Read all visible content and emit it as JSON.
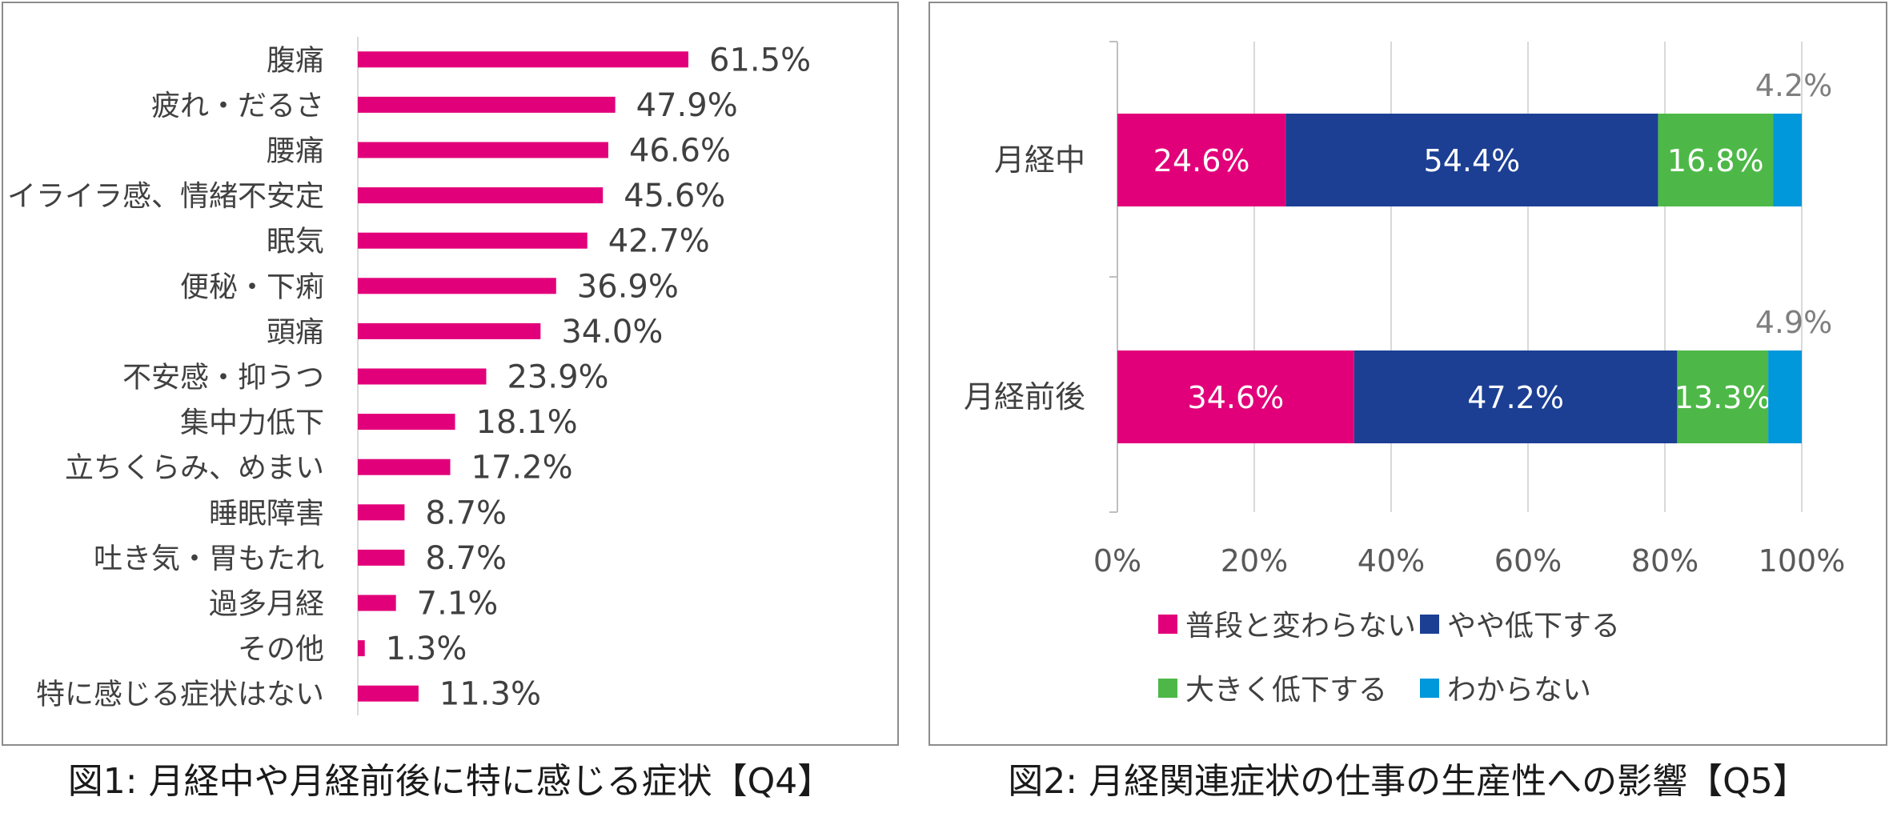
{
  "colors": {
    "magenta": "#E2007A",
    "navy": "#1C3F94",
    "green": "#4DB848",
    "cyan": "#0097DB",
    "text": "#404040",
    "grid": "#D9D9D9",
    "muted": "#7F7F7F"
  },
  "chart_data": [
    {
      "type": "bar",
      "orientation": "horizontal",
      "categories": [
        "腹痛",
        "疲れ・だるさ",
        "腰痛",
        "イライラ感、情緒不安定",
        "眠気",
        "便秘・下痢",
        "頭痛",
        "不安感・抑うつ",
        "集中力低下",
        "立ちくらみ、めまい",
        "睡眠障害",
        "吐き気・胃もたれ",
        "過多月経",
        "その他",
        "特に感じる症状はない"
      ],
      "values": [
        61.5,
        47.9,
        46.6,
        45.6,
        42.7,
        36.9,
        34.0,
        23.9,
        18.1,
        17.2,
        8.7,
        8.7,
        7.1,
        1.3,
        11.3
      ],
      "value_labels": [
        "61.5%",
        "47.9%",
        "46.6%",
        "45.6%",
        "42.7%",
        "36.9%",
        "34.0%",
        "23.9%",
        "18.1%",
        "17.2%",
        "8.7%",
        "8.7%",
        "7.1%",
        "1.3%",
        "11.3%"
      ],
      "unit": "%",
      "color": "#E2007A",
      "caption": "図1: 月経中や月経前後に特に感じる症状【Q4】"
    },
    {
      "type": "bar",
      "orientation": "horizontal",
      "stacked": true,
      "categories": [
        "月経中",
        "月経前後"
      ],
      "series": [
        {
          "name": "普段と変わらない",
          "color": "#E2007A",
          "values": [
            24.6,
            34.6
          ],
          "labels": [
            "24.6%",
            "34.6%"
          ]
        },
        {
          "name": "やや低下する",
          "color": "#1C3F94",
          "values": [
            54.4,
            47.2
          ],
          "labels": [
            "54.4%",
            "47.2%"
          ]
        },
        {
          "name": "大きく低下する",
          "color": "#4DB848",
          "values": [
            16.8,
            13.3
          ],
          "labels": [
            "16.8%",
            "13.3%"
          ]
        },
        {
          "name": "わからない",
          "color": "#0097DB",
          "values": [
            4.2,
            4.9
          ],
          "labels": [
            "4.2%",
            "4.9%"
          ]
        }
      ],
      "xlim": [
        0,
        100
      ],
      "x_ticks": [
        "0%",
        "20%",
        "40%",
        "60%",
        "80%",
        "100%"
      ],
      "grid": true,
      "legend": "bottom",
      "caption": "図2: 月経関連症状の仕事の生産性への影響【Q5】"
    }
  ]
}
